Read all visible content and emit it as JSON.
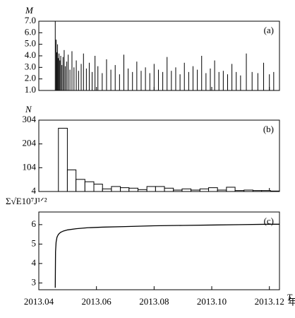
{
  "chart_data": [
    {
      "type": "bar",
      "y_label": "M",
      "panel_label": "(a)",
      "x": [
        0.57,
        0.6,
        0.62,
        0.65,
        0.68,
        0.7,
        0.73,
        0.76,
        0.8,
        0.84,
        0.88,
        0.92,
        0.97,
        1.02,
        1.08,
        1.15,
        1.22,
        1.3,
        1.38,
        1.47,
        1.55,
        1.65,
        1.75,
        1.85,
        1.95,
        2.05,
        2.2,
        2.35,
        2.5,
        2.65,
        2.8,
        2.95,
        3.1,
        3.25,
        3.4,
        3.55,
        3.7,
        3.85,
        4.0,
        4.15,
        4.3,
        4.45,
        4.6,
        4.75,
        4.9,
        5.05,
        5.2,
        5.35,
        5.5,
        5.65,
        5.8,
        5.95,
        6.1,
        6.25,
        6.4,
        6.55,
        6.7,
        6.85,
        7.0,
        7.2,
        7.4,
        7.6,
        7.8,
        8.0,
        8.15
      ],
      "values": [
        7.0,
        5.4,
        4.3,
        5.0,
        3.8,
        4.2,
        3.6,
        4.0,
        3.2,
        3.9,
        4.5,
        3.1,
        3.5,
        4.1,
        2.8,
        4.4,
        3.0,
        3.6,
        2.7,
        3.3,
        4.2,
        2.9,
        3.4,
        2.6,
        4.0,
        3.1,
        2.5,
        3.7,
        2.8,
        3.2,
        2.4,
        4.1,
        2.9,
        2.6,
        3.5,
        2.7,
        3.0,
        2.5,
        3.3,
        2.8,
        2.6,
        3.9,
        2.7,
        3.0,
        2.4,
        3.4,
        2.6,
        3.1,
        2.8,
        4.0,
        2.5,
        2.9,
        3.6,
        2.6,
        2.7,
        2.4,
        3.3,
        2.6,
        2.3,
        4.2,
        2.6,
        2.5,
        3.4,
        2.4,
        2.6
      ],
      "color": "#000000",
      "xlim": [
        0,
        8.35
      ],
      "ylim": [
        1,
        7
      ],
      "yticks": [
        {
          "value": 1,
          "label": "1.0"
        },
        {
          "value": 2,
          "label": "2.0"
        },
        {
          "value": 3,
          "label": "3.0"
        },
        {
          "value": 4,
          "label": "4.0"
        },
        {
          "value": 5,
          "label": "5.0"
        },
        {
          "value": 6,
          "label": "6.0"
        },
        {
          "value": 7,
          "label": "7.0"
        }
      ]
    },
    {
      "type": "histogram",
      "y_label": "N",
      "panel_label": "(b)",
      "bins": [
        0.68,
        0.99,
        1.29,
        1.6,
        1.91,
        2.21,
        2.52,
        2.83,
        3.13,
        3.44,
        3.75,
        4.05,
        4.36,
        4.67,
        4.97,
        5.28,
        5.59,
        5.89,
        6.2,
        6.51,
        6.81,
        7.12,
        7.43,
        7.73,
        8.04,
        8.35
      ],
      "values": [
        270,
        95,
        55,
        45,
        35,
        15,
        25,
        20,
        18,
        12,
        25,
        25,
        18,
        10,
        15,
        10,
        15,
        20,
        10,
        22,
        8,
        10,
        8,
        8,
        6
      ],
      "color": "#ffffff",
      "xlim": [
        0,
        8.35
      ],
      "ylim": [
        4,
        304
      ],
      "yticks": [
        4,
        104,
        204,
        304
      ]
    },
    {
      "type": "line",
      "y_label": "Σ√E10⁷J¹ᐟ²",
      "panel_label": "(c)",
      "x_label": "T",
      "x_unit": "年月",
      "x": [
        0.57,
        0.58,
        0.6,
        0.63,
        0.68,
        0.75,
        0.85,
        1.0,
        1.3,
        1.7,
        2.2,
        3.0,
        4.0,
        5.0,
        6.0,
        7.0,
        8.0,
        8.35
      ],
      "values": [
        2.75,
        4.6,
        5.1,
        5.35,
        5.5,
        5.6,
        5.67,
        5.73,
        5.79,
        5.84,
        5.87,
        5.9,
        5.94,
        5.96,
        5.98,
        6.0,
        6.02,
        6.02
      ],
      "color": "#000000",
      "xlim": [
        0,
        8.35
      ],
      "ylim": [
        2.65,
        6.65
      ],
      "yticks": [
        3,
        4,
        5,
        6
      ],
      "xticks": [
        {
          "value": 0,
          "label": "2013.04"
        },
        {
          "value": 2,
          "label": "2013.06"
        },
        {
          "value": 4,
          "label": "2013.08"
        },
        {
          "value": 6,
          "label": "2013.10"
        },
        {
          "value": 8,
          "label": "2013.12"
        }
      ]
    }
  ]
}
